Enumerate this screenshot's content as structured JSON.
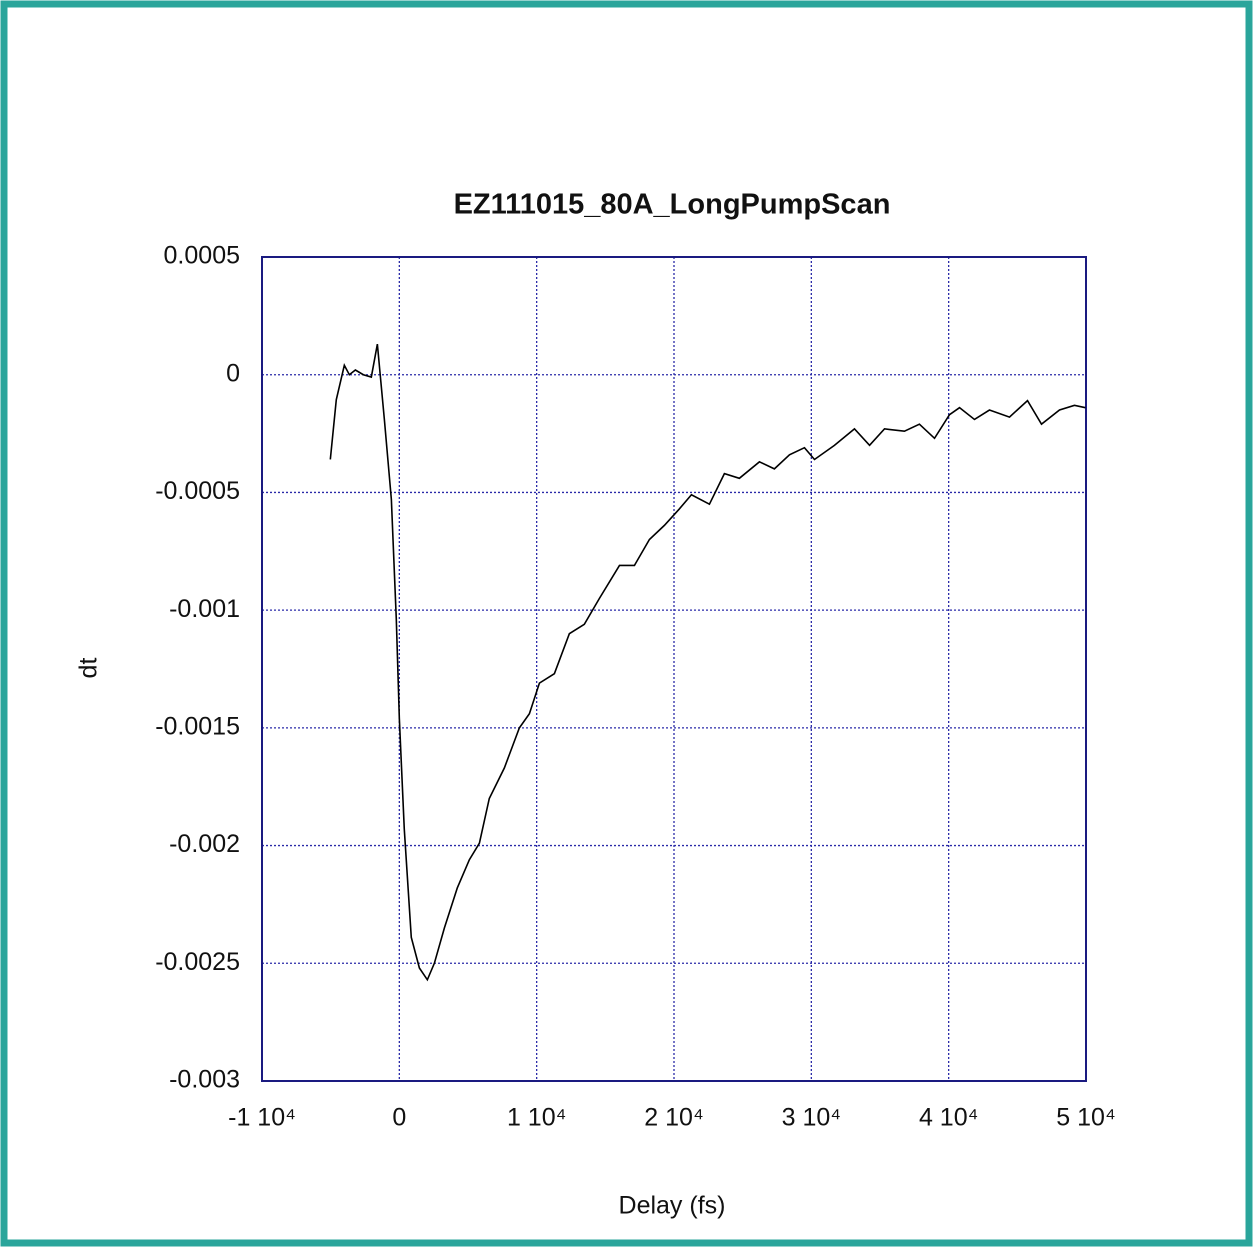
{
  "chart_data": {
    "type": "line",
    "title": "EZ111015_80A_LongPumpScan",
    "x_label": "Delay (fs)",
    "y_label": "dt",
    "x": [
      -5025,
      -4590,
      -4005,
      -3640,
      -3200,
      -2620,
      -2040,
      -1600,
      -1090,
      -580,
      -220,
      0,
      360,
      870,
      1460,
      2040,
      2550,
      3280,
      4220,
      5100,
      5830,
      6550,
      7650,
      8740,
      9470,
      10200,
      11290,
      12380,
      13470,
      14570,
      16030,
      17120,
      18210,
      19300,
      20390,
      21270,
      22580,
      23670,
      24760,
      26220,
      27310,
      28410,
      29500,
      30230,
      31680,
      33140,
      34240,
      35330,
      36780,
      37870,
      38970,
      40060,
      40790,
      41880,
      42970,
      44430,
      45740,
      46760,
      48070,
      49160,
      49960
    ],
    "series": [
      {
        "name": "dt",
        "color": "#000000",
        "values": [
          -0.00036,
          -0.000106,
          4e-05,
          0,
          2e-05,
          0,
          -1e-05,
          0.00013,
          -0.00019,
          -0.00053,
          -0.00104,
          -0.00146,
          -0.00193,
          -0.00239,
          -0.00252,
          -0.00257,
          -0.0025,
          -0.00235,
          -0.00218,
          -0.00206,
          -0.00199,
          -0.0018,
          -0.00167,
          -0.0015,
          -0.00144,
          -0.00131,
          -0.00127,
          -0.0011,
          -0.00106,
          -0.00095,
          -0.00081,
          -0.00081,
          -0.0007,
          -0.00064,
          -0.00057,
          -0.00051,
          -0.00055,
          -0.00042,
          -0.00044,
          -0.00037,
          -0.0004,
          -0.00034,
          -0.00031,
          -0.00036,
          -0.0003,
          -0.00023,
          -0.0003,
          -0.00023,
          -0.00024,
          -0.00021,
          -0.00027,
          -0.00017,
          -0.00014,
          -0.00019,
          -0.00015,
          -0.00018,
          -0.00011,
          -0.00021,
          -0.00015,
          -0.00013,
          -0.00014
        ]
      }
    ],
    "xlim": [
      -10000,
      50000
    ],
    "xticks": [
      {
        "value": -10000,
        "label": "-1 10⁴"
      },
      0,
      {
        "value": 10000,
        "label": "1 10⁴"
      },
      {
        "value": 20000,
        "label": "2 10⁴"
      },
      {
        "value": 30000,
        "label": "3 10⁴"
      },
      {
        "value": 40000,
        "label": "4 10⁴"
      },
      {
        "value": 50000,
        "label": "5 10⁴"
      }
    ],
    "ylim": [
      -0.003,
      0.0005
    ],
    "yticks": [
      -0.003,
      -0.0025,
      -0.002,
      -0.0015,
      -0.001,
      -0.0005,
      0,
      0.0005
    ],
    "grid": true,
    "grid_color": "#2a2aa8",
    "frame_color": "#1a1a80"
  }
}
